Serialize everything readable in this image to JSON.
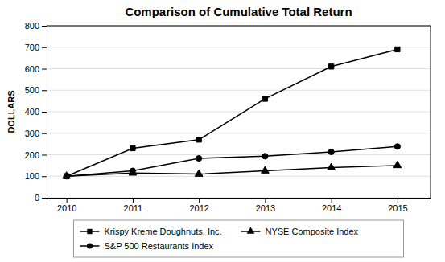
{
  "chart_data": {
    "type": "line",
    "title": "Comparison of Cumulative Total Return",
    "ylabel": "DOLLARS",
    "x": [
      2010,
      2011,
      2012,
      2013,
      2014,
      2015
    ],
    "series": [
      {
        "name": "Krispy Kreme Doughnuts, Inc.",
        "color": "#000000",
        "marker": "square",
        "values": [
          100,
          230,
          270,
          460,
          610,
          690
        ]
      },
      {
        "name": "NYSE Composite Index",
        "color": "#000000",
        "marker": "triangle",
        "values": [
          100,
          115,
          110,
          125,
          140,
          150
        ]
      },
      {
        "name": "S&P 500 Restaurants Index",
        "color": "#000000",
        "marker": "circle",
        "values": [
          100,
          125,
          183,
          193,
          213,
          238
        ]
      }
    ],
    "xlim": [
      2009.7,
      2015.5
    ],
    "xticks": [
      2010,
      2011,
      2012,
      2013,
      2014,
      2015
    ],
    "ylim": [
      0,
      800
    ],
    "yticks": [
      0,
      100,
      200,
      300,
      400,
      500,
      600,
      700,
      800
    ],
    "grid": true,
    "legend": "bottom"
  }
}
